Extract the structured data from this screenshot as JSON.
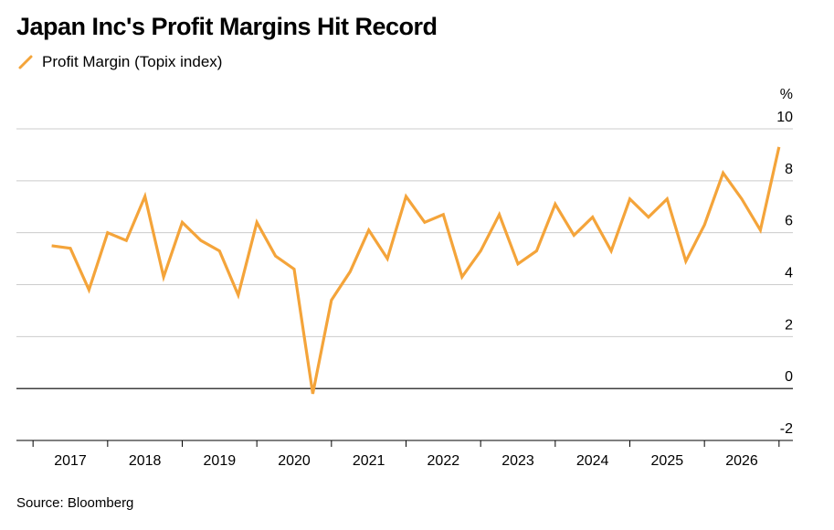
{
  "title": "Japan Inc's Profit Margins Hit Record",
  "legend_label": "Profit Margin (Topix index)",
  "source": "Source: Bloomberg",
  "colors": {
    "series": "#f4a43a",
    "grid": "#cccccc",
    "zero": "#000000",
    "axis": "#000000"
  },
  "chart_data": {
    "type": "line",
    "title": "Japan Inc's Profit Margins Hit Record",
    "y_unit": "%",
    "ylim": [
      -2,
      10
    ],
    "yticks": [
      -2,
      0,
      2,
      4,
      6,
      8,
      10
    ],
    "xticks": [
      "2017",
      "2018",
      "2019",
      "2020",
      "2021",
      "2022",
      "2023",
      "2024",
      "2025",
      "2026"
    ],
    "xlim": [
      2016.5,
      2026.5
    ],
    "grid": true,
    "legend_position": "top-left",
    "series": [
      {
        "name": "Profit Margin (Topix index)",
        "x": [
          2016.25,
          2016.5,
          2016.75,
          2017.0,
          2017.25,
          2017.5,
          2017.75,
          2018.0,
          2018.25,
          2018.5,
          2018.75,
          2019.0,
          2019.25,
          2019.5,
          2019.75,
          2020.0,
          2020.25,
          2020.5,
          2020.75,
          2021.0,
          2021.25,
          2021.5,
          2021.75,
          2022.0,
          2022.25,
          2022.5,
          2022.75,
          2023.0,
          2023.25,
          2023.5,
          2023.75,
          2024.0,
          2024.25,
          2024.5,
          2024.75,
          2025.0,
          2025.25,
          2025.5,
          2025.75,
          2026.0
        ],
        "values": [
          5.5,
          5.4,
          3.8,
          6.0,
          5.7,
          7.4,
          4.3,
          6.4,
          5.7,
          5.3,
          3.6,
          6.4,
          5.1,
          4.6,
          -0.2,
          3.4,
          4.5,
          6.1,
          5.0,
          7.4,
          6.4,
          6.7,
          4.3,
          5.3,
          6.7,
          4.8,
          5.3,
          7.1,
          5.9,
          6.6,
          5.3,
          7.3,
          6.6,
          7.3,
          4.9,
          6.3,
          8.3,
          7.3,
          6.1,
          9.3
        ]
      }
    ]
  }
}
